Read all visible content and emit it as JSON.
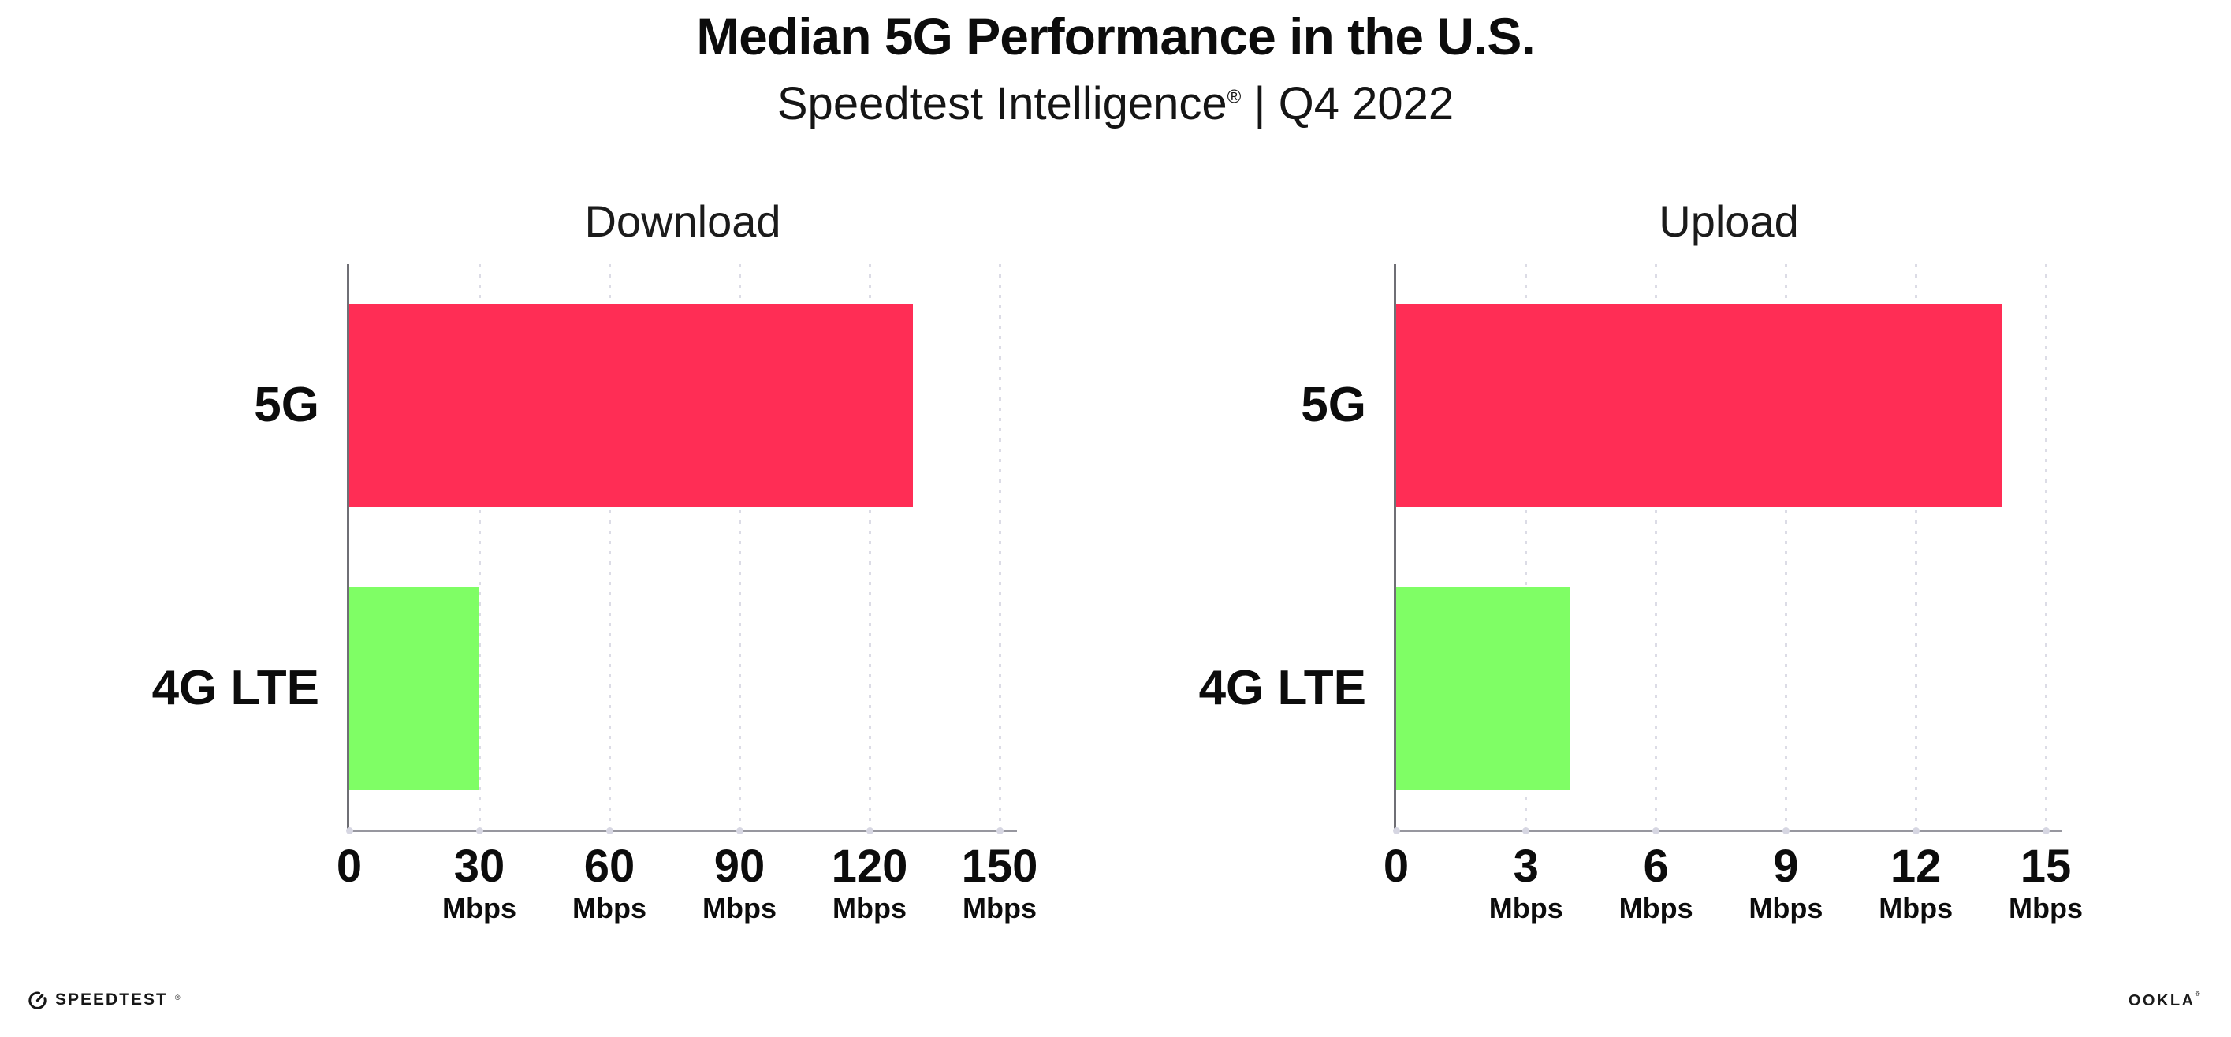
{
  "header": {
    "title": "Median 5G Performance in the U.S.",
    "subtitle_brand": "Speedtest Intelligence",
    "subtitle_reg": "®",
    "subtitle_rest": " | Q4 2022"
  },
  "chart_data": [
    {
      "type": "bar",
      "orientation": "horizontal",
      "title": "Download",
      "categories": [
        "5G",
        "4G LTE"
      ],
      "values": [
        130,
        30
      ],
      "unit": "Mbps",
      "xlim": [
        0,
        150
      ],
      "xticks": [
        0,
        30,
        60,
        90,
        120,
        150
      ],
      "tick_unit": "Mbps",
      "grid": "dotted-vertical",
      "legend": "none",
      "bar_colors": [
        "#FF2D55",
        "#7FFE65"
      ]
    },
    {
      "type": "bar",
      "orientation": "horizontal",
      "title": "Upload",
      "categories": [
        "5G",
        "4G LTE"
      ],
      "values": [
        14,
        4
      ],
      "unit": "Mbps",
      "xlim": [
        0,
        15
      ],
      "xticks": [
        0,
        3,
        6,
        9,
        12,
        15
      ],
      "tick_unit": "Mbps",
      "grid": "dotted-vertical",
      "legend": "none",
      "bar_colors": [
        "#FF2D55",
        "#7FFE65"
      ]
    }
  ],
  "footer": {
    "speedtest_label": "SPEEDTEST",
    "speedtest_reg": "®",
    "ookla_label": "OOKLA",
    "ookla_reg": "®"
  },
  "colors": {
    "bar_5g": "#FF2D55",
    "bar_4g_lte": "#7FFE65",
    "grid_dot": "#DCDCE6",
    "axis_y": "#6F6F75",
    "axis_x": "#97979F",
    "text": "#0C0C0C",
    "tick_dot": "#D6D6E2"
  }
}
